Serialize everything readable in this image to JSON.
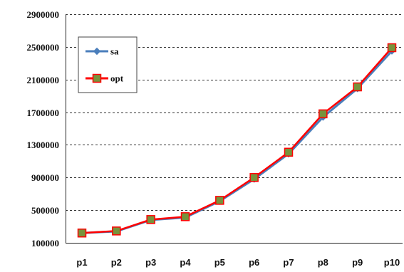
{
  "chart_data": {
    "type": "line",
    "title": "",
    "xlabel": "",
    "ylabel": "",
    "categories": [
      "p1",
      "p2",
      "p3",
      "p4",
      "p5",
      "p6",
      "p7",
      "p8",
      "p9",
      "p10"
    ],
    "ylim": [
      100000,
      2900000
    ],
    "yticks": [
      100000,
      500000,
      900000,
      1300000,
      1700000,
      2100000,
      2500000,
      2900000
    ],
    "grid": "horizontal-dashed",
    "legend_position": "top-left",
    "series": [
      {
        "name": "sa",
        "color": "#4a7ebb",
        "marker": "diamond",
        "values": [
          220000,
          240000,
          380000,
          410000,
          610000,
          880000,
          1190000,
          1640000,
          1990000,
          2450000
        ]
      },
      {
        "name": "opt",
        "color": "#ff0000",
        "marker": "square",
        "marker_fill": "#77933c",
        "values": [
          220000,
          245000,
          385000,
          420000,
          620000,
          900000,
          1210000,
          1680000,
          2010000,
          2490000
        ]
      }
    ]
  }
}
